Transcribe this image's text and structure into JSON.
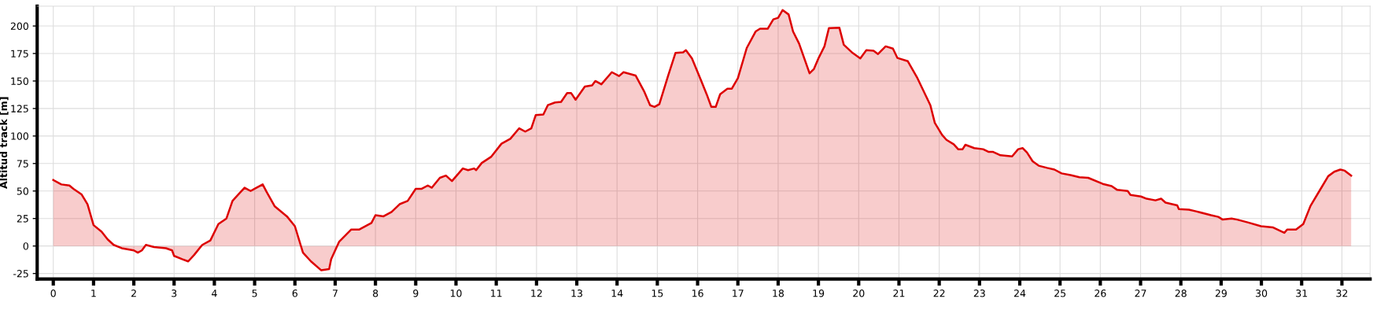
{
  "chart_data": {
    "type": "area",
    "ylabel": "Altitud track [m]",
    "xlim": [
      -0.4,
      32.7
    ],
    "ylim": [
      -30,
      218
    ],
    "xticks": [
      0,
      1,
      2,
      3,
      4,
      5,
      6,
      7,
      8,
      9,
      10,
      11,
      12,
      13,
      14,
      15,
      16,
      17,
      18,
      19,
      20,
      21,
      22,
      23,
      24,
      25,
      26,
      27,
      28,
      29,
      30,
      31,
      32
    ],
    "yticks": [
      -25,
      0,
      25,
      50,
      75,
      100,
      125,
      150,
      175,
      200
    ],
    "grid": true,
    "legend": false,
    "series": [
      {
        "color": "#dd0000",
        "x": [
          0,
          0.2,
          0.4,
          0.5,
          0.7,
          0.85,
          1.0,
          1.2,
          1.35,
          1.5,
          1.7,
          2.0,
          2.1,
          2.2,
          2.3,
          2.5,
          2.8,
          2.95,
          3.0,
          3.2,
          3.35,
          3.5,
          3.7,
          3.9,
          4.1,
          4.3,
          4.45,
          4.6,
          4.75,
          4.9,
          5.0,
          5.2,
          5.3,
          5.5,
          5.8,
          6.0,
          6.2,
          6.4,
          6.65,
          6.85,
          6.9,
          7.1,
          7.4,
          7.6,
          7.8,
          7.9,
          8.0,
          8.2,
          8.4,
          8.6,
          8.8,
          9.0,
          9.15,
          9.3,
          9.4,
          9.6,
          9.75,
          9.9,
          10.17,
          10.3,
          10.45,
          10.5,
          10.64,
          10.87,
          11.13,
          11.35,
          11.57,
          11.72,
          11.87,
          11.98,
          12.17,
          12.28,
          12.46,
          12.61,
          12.76,
          12.86,
          12.97,
          13.2,
          13.38,
          13.46,
          13.61,
          13.87,
          14.05,
          14.16,
          14.46,
          14.68,
          14.82,
          14.93,
          15.05,
          15.27,
          15.45,
          15.64,
          15.71,
          15.86,
          16.08,
          16.23,
          16.34,
          16.45,
          16.56,
          16.74,
          16.85,
          17.0,
          17.22,
          17.44,
          17.55,
          17.74,
          17.88,
          18.0,
          18.11,
          18.26,
          18.37,
          18.52,
          18.78,
          18.89,
          19.0,
          19.15,
          19.26,
          19.52,
          19.63,
          19.85,
          20.04,
          20.19,
          20.37,
          20.48,
          20.67,
          20.85,
          20.96,
          21.22,
          21.46,
          21.78,
          21.89,
          22.07,
          22.18,
          22.36,
          22.47,
          22.58,
          22.65,
          22.87,
          23.09,
          23.23,
          23.34,
          23.52,
          23.81,
          23.96,
          24.07,
          24.18,
          24.32,
          24.47,
          24.68,
          24.86,
          25.04,
          25.26,
          25.48,
          25.7,
          26.06,
          26.28,
          26.42,
          26.68,
          26.75,
          27.01,
          27.15,
          27.37,
          27.51,
          27.62,
          27.91,
          27.95,
          28.2,
          28.38,
          28.75,
          28.93,
          29.04,
          29.26,
          29.4,
          29.66,
          29.99,
          30.28,
          30.57,
          30.64,
          30.86,
          31.04,
          31.22,
          31.44,
          31.66,
          31.81,
          31.96,
          32.07,
          32.23
        ],
        "values": [
          60,
          56,
          55,
          52,
          47,
          38,
          19,
          13,
          6,
          1,
          -2,
          -4,
          -6,
          -4,
          1,
          -1,
          -2,
          -4,
          -9,
          -12,
          -14,
          -8,
          1,
          5,
          20,
          25,
          41,
          47,
          53,
          50,
          52,
          56,
          49,
          36,
          27,
          18,
          -6,
          -14,
          -22,
          -21,
          -12,
          4,
          15,
          15,
          19,
          21,
          28,
          27,
          31,
          38,
          41,
          52,
          52,
          55,
          53,
          62,
          64,
          59,
          70.5,
          69,
          70.5,
          69,
          75.5,
          81,
          93,
          97.5,
          107,
          104,
          107,
          119,
          119.5,
          128,
          130.5,
          131,
          139,
          139,
          133,
          145,
          146,
          150,
          147,
          158,
          154.5,
          158,
          155,
          140,
          128,
          126.5,
          129,
          155,
          175.5,
          176,
          178,
          170.5,
          151,
          137.5,
          126.5,
          126.5,
          138,
          143,
          143,
          152.5,
          180,
          195,
          197.5,
          197.5,
          206,
          207.5,
          214.5,
          210.5,
          195,
          184,
          157,
          161,
          170.5,
          181.5,
          198,
          198.5,
          183,
          175.5,
          170.5,
          178,
          177.5,
          174.5,
          181.5,
          179.5,
          171,
          168,
          152.5,
          128,
          112,
          101,
          96.5,
          92.5,
          88,
          88,
          92,
          89,
          88,
          85.5,
          85.5,
          82.5,
          81.5,
          88,
          89,
          85,
          77,
          73,
          71,
          69.5,
          66,
          64.5,
          62.5,
          62,
          56.5,
          54.5,
          51,
          50,
          46.5,
          45,
          43,
          41.5,
          43,
          39.5,
          37,
          33.5,
          33,
          31.5,
          28,
          26.5,
          24,
          25,
          24,
          21.5,
          18,
          17,
          12,
          15,
          15,
          20,
          36.5,
          50,
          63.5,
          67.5,
          69.5,
          68.5,
          64
        ]
      }
    ]
  }
}
